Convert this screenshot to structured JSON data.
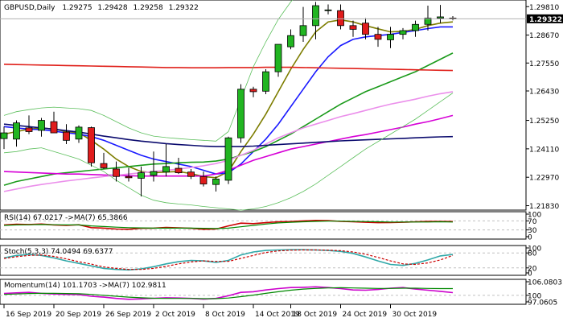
{
  "chart_data": {
    "type": "candlestick",
    "instrument": "GBPUSD,Daily",
    "ohlc_header": {
      "open": "1.29275",
      "high": "1.29428",
      "low": "1.29258",
      "close": "1.29322"
    },
    "current_price_label": "1.29322",
    "y_ticks": [
      "1.29810",
      "1.28670",
      "1.27550",
      "1.26430",
      "1.25250",
      "1.24110",
      "1.22970",
      "1.21830"
    ],
    "x_ticks": [
      "16 Sep 2019",
      "20 Sep 2019",
      "26 Sep 2019",
      "2 Oct 2019",
      "8 Oct 2019",
      "14 Oct 2019",
      "18 Oct 2019",
      "24 Oct 2019",
      "30 Oct 2019"
    ],
    "ylim": [
      1.2175,
      1.2998
    ],
    "candles": [
      {
        "o": 1.2452,
        "h": 1.25,
        "l": 1.241,
        "c": 1.2475
      },
      {
        "o": 1.245,
        "h": 1.2525,
        "l": 1.242,
        "c": 1.2515
      },
      {
        "o": 1.2495,
        "h": 1.2545,
        "l": 1.247,
        "c": 1.248
      },
      {
        "o": 1.2485,
        "h": 1.2535,
        "l": 1.246,
        "c": 1.2525
      },
      {
        "o": 1.252,
        "h": 1.256,
        "l": 1.248,
        "c": 1.2475
      },
      {
        "o": 1.2478,
        "h": 1.251,
        "l": 1.243,
        "c": 1.2445
      },
      {
        "o": 1.245,
        "h": 1.2505,
        "l": 1.2435,
        "c": 1.2498
      },
      {
        "o": 1.2496,
        "h": 1.25,
        "l": 1.234,
        "c": 1.2355
      },
      {
        "o": 1.2352,
        "h": 1.2395,
        "l": 1.233,
        "c": 1.2335
      },
      {
        "o": 1.233,
        "h": 1.236,
        "l": 1.228,
        "c": 1.23
      },
      {
        "o": 1.23,
        "h": 1.2335,
        "l": 1.228,
        "c": 1.2295
      },
      {
        "o": 1.2293,
        "h": 1.234,
        "l": 1.222,
        "c": 1.2315
      },
      {
        "o": 1.2305,
        "h": 1.24,
        "l": 1.228,
        "c": 1.232
      },
      {
        "o": 1.2318,
        "h": 1.243,
        "l": 1.23,
        "c": 1.234
      },
      {
        "o": 1.2333,
        "h": 1.2375,
        "l": 1.231,
        "c": 1.2315
      },
      {
        "o": 1.2318,
        "h": 1.233,
        "l": 1.229,
        "c": 1.23
      },
      {
        "o": 1.23,
        "h": 1.232,
        "l": 1.226,
        "c": 1.227
      },
      {
        "o": 1.2268,
        "h": 1.23,
        "l": 1.224,
        "c": 1.229
      },
      {
        "o": 1.2285,
        "h": 1.246,
        "l": 1.227,
        "c": 1.2455
      },
      {
        "o": 1.2455,
        "h": 1.267,
        "l": 1.2435,
        "c": 1.265
      },
      {
        "o": 1.265,
        "h": 1.266,
        "l": 1.2618,
        "c": 1.264
      },
      {
        "o": 1.2642,
        "h": 1.273,
        "l": 1.263,
        "c": 1.272
      },
      {
        "o": 1.272,
        "h": 1.283,
        "l": 1.27,
        "c": 1.283
      },
      {
        "o": 1.282,
        "h": 1.289,
        "l": 1.281,
        "c": 1.2865
      },
      {
        "o": 1.2865,
        "h": 1.298,
        "l": 1.284,
        "c": 1.2905
      },
      {
        "o": 1.2905,
        "h": 1.3,
        "l": 1.285,
        "c": 1.2985
      },
      {
        "o": 1.2965,
        "h": 1.299,
        "l": 1.295,
        "c": 1.2968
      },
      {
        "o": 1.2965,
        "h": 1.299,
        "l": 1.289,
        "c": 1.2905
      },
      {
        "o": 1.2905,
        "h": 1.2925,
        "l": 1.286,
        "c": 1.289
      },
      {
        "o": 1.2915,
        "h": 1.2935,
        "l": 1.285,
        "c": 1.287
      },
      {
        "o": 1.287,
        "h": 1.29,
        "l": 1.282,
        "c": 1.285
      },
      {
        "o": 1.2848,
        "h": 1.29,
        "l": 1.2815,
        "c": 1.287
      },
      {
        "o": 1.287,
        "h": 1.2895,
        "l": 1.285,
        "c": 1.2885
      },
      {
        "o": 1.2885,
        "h": 1.2925,
        "l": 1.286,
        "c": 1.291
      },
      {
        "o": 1.291,
        "h": 1.2985,
        "l": 1.2885,
        "c": 1.2935
      },
      {
        "o": 1.2935,
        "h": 1.2988,
        "l": 1.2915,
        "c": 1.294
      },
      {
        "o": 1.2935,
        "h": 1.2943,
        "l": 1.2926,
        "c": 1.2932
      }
    ],
    "overlays": [
      {
        "color": "#7d7d00",
        "values": [
          1.247,
          1.248,
          1.249,
          1.2495,
          1.249,
          1.248,
          1.2475,
          1.2445,
          1.241,
          1.237,
          1.234,
          1.232,
          1.2315,
          1.2318,
          1.232,
          1.2312,
          1.23,
          1.2295,
          1.232,
          1.24,
          1.247,
          1.255,
          1.264,
          1.273,
          1.281,
          1.288,
          1.292,
          1.2928,
          1.292,
          1.2905,
          1.2892,
          1.288,
          1.2882,
          1.289,
          1.2905,
          1.2915,
          1.292
        ]
      },
      {
        "color": "#1a1aff",
        "values": [
          1.25,
          1.2495,
          1.249,
          1.2488,
          1.2482,
          1.2475,
          1.247,
          1.246,
          1.2445,
          1.2425,
          1.2405,
          1.2385,
          1.237,
          1.236,
          1.235,
          1.234,
          1.2325,
          1.231,
          1.2315,
          1.235,
          1.24,
          1.245,
          1.251,
          1.258,
          1.265,
          1.272,
          1.278,
          1.2825,
          1.285,
          1.286,
          1.2865,
          1.287,
          1.2878,
          1.2885,
          1.2893,
          1.29,
          1.29
        ]
      },
      {
        "color": "#1a9a1a",
        "values": [
          1.2265,
          1.228,
          1.229,
          1.23,
          1.231,
          1.2315,
          1.232,
          1.2325,
          1.233,
          1.2335,
          1.234,
          1.2345,
          1.235,
          1.2352,
          1.2355,
          1.2357,
          1.2358,
          1.2362,
          1.237,
          1.2385,
          1.24,
          1.242,
          1.2445,
          1.247,
          1.25,
          1.253,
          1.256,
          1.259,
          1.2615,
          1.264,
          1.266,
          1.268,
          1.27,
          1.272,
          1.2745,
          1.277,
          1.2795
        ]
      },
      {
        "color": "#d600d6",
        "values": [
          1.232,
          1.2318,
          1.2316,
          1.2314,
          1.2312,
          1.231,
          1.231,
          1.2308,
          1.2306,
          1.2305,
          1.2303,
          1.2302,
          1.2302,
          1.2302,
          1.2302,
          1.2302,
          1.2302,
          1.231,
          1.2325,
          1.2345,
          1.2365,
          1.238,
          1.2395,
          1.241,
          1.242,
          1.243,
          1.244,
          1.245,
          1.246,
          1.2468,
          1.2478,
          1.2488,
          1.2498,
          1.251,
          1.252,
          1.2532,
          1.2545
        ]
      },
      {
        "color": "#eb8feb",
        "values": [
          1.224,
          1.225,
          1.226,
          1.2268,
          1.2275,
          1.2282,
          1.2288,
          1.2294,
          1.23,
          1.2305,
          1.231,
          1.2315,
          1.232,
          1.2325,
          1.233,
          1.2336,
          1.2343,
          1.2352,
          1.2365,
          1.2385,
          1.2405,
          1.243,
          1.2455,
          1.2475,
          1.2495,
          1.251,
          1.2525,
          1.254,
          1.2552,
          1.2565,
          1.2578,
          1.259,
          1.26,
          1.261,
          1.2622,
          1.2632,
          1.264
        ]
      },
      {
        "color": "#0b0b6e",
        "values": [
          1.251,
          1.2505,
          1.25,
          1.2495,
          1.249,
          1.2484,
          1.2478,
          1.247,
          1.2462,
          1.2455,
          1.2448,
          1.2442,
          1.2437,
          1.2432,
          1.2428,
          1.2425,
          1.2422,
          1.242,
          1.242,
          1.242,
          1.2422,
          1.2425,
          1.2428,
          1.2431,
          1.2434,
          1.2437,
          1.244,
          1.2443,
          1.2445,
          1.2447,
          1.2449,
          1.2451,
          1.2453,
          1.2455,
          1.2457,
          1.2459,
          1.246
        ]
      },
      {
        "color": "#e0201a",
        "values": [
          1.275,
          1.2749,
          1.2748,
          1.2747,
          1.2746,
          1.2745,
          1.2744,
          1.2743,
          1.2742,
          1.2741,
          1.274,
          1.2739,
          1.2738,
          1.2737,
          1.2737,
          1.2736,
          1.2736,
          1.2736,
          1.2737,
          1.2737,
          1.2737,
          1.2738,
          1.2738,
          1.2738,
          1.2737,
          1.2736,
          1.2735,
          1.2734,
          1.2733,
          1.2732,
          1.2731,
          1.273,
          1.2729,
          1.2728,
          1.2727,
          1.2726,
          1.2725
        ]
      },
      {
        "color": "#5cbf5c",
        "width": 0.8,
        "values": [
          1.2545,
          1.256,
          1.2568,
          1.2575,
          1.2578,
          1.2575,
          1.2572,
          1.2565,
          1.2545,
          1.252,
          1.2495,
          1.2475,
          1.2462,
          1.2456,
          1.2452,
          1.2448,
          1.2445,
          1.2442,
          1.248,
          1.261,
          1.274,
          1.284,
          1.293,
          1.3,
          1.306,
          1.31,
          1.312,
          1.312,
          1.311,
          1.3095,
          1.308,
          1.307,
          1.306,
          1.3055,
          1.3052,
          1.3052,
          1.3055
        ]
      },
      {
        "color": "#5cbf5c",
        "width": 0.8,
        "values": [
          1.2395,
          1.24,
          1.241,
          1.2415,
          1.24,
          1.2385,
          1.237,
          1.2345,
          1.232,
          1.2285,
          1.2255,
          1.2225,
          1.2205,
          1.2195,
          1.219,
          1.2186,
          1.218,
          1.2175,
          1.217,
          1.2165,
          1.217,
          1.218,
          1.2195,
          1.2215,
          1.224,
          1.227,
          1.2305,
          1.234,
          1.2375,
          1.241,
          1.244,
          1.247,
          1.25,
          1.253,
          1.2565,
          1.26,
          1.2635
        ]
      }
    ],
    "indicators": [
      {
        "label": "RSI(14) 67.0217  ->MA(7) 65.3866",
        "ticks": [
          "100",
          "70",
          "30",
          "0"
        ],
        "series": [
          {
            "color": "#cc0000",
            "values": [
              52,
              55,
              54,
              56,
              52,
              50,
              53,
              40,
              38,
              34,
              33,
              37,
              38,
              41,
              39,
              37,
              33,
              34,
              48,
              60,
              58,
              62,
              66,
              67,
              70,
              72,
              71,
              68,
              66,
              64,
              62,
              63,
              64,
              66,
              68,
              68,
              67
            ]
          },
          {
            "color": "#008800",
            "values": [
              50,
              52,
              53,
              54,
              53,
              52,
              52,
              48,
              45,
              42,
              40,
              39,
              38,
              38,
              38,
              38,
              37,
              36,
              38,
              44,
              50,
              56,
              61,
              64,
              66,
              68,
              69,
              69,
              68,
              67,
              66,
              65,
              65,
              65,
              65,
              66,
              65
            ]
          }
        ]
      },
      {
        "label": "Stoch(5,3,3) 74.0494 69.6377",
        "ticks": [
          "100",
          "80",
          "20",
          "0"
        ],
        "series": [
          {
            "color": "#2fa8a8",
            "values": [
              60,
              70,
              74,
              70,
              60,
              48,
              38,
              28,
              18,
              14,
              12,
              16,
              25,
              36,
              45,
              50,
              48,
              42,
              50,
              72,
              84,
              90,
              92,
              93,
              93,
              92,
              90,
              86,
              78,
              64,
              48,
              34,
              30,
              38,
              52,
              68,
              74
            ]
          },
          {
            "color": "#cc0000",
            "dashed": true,
            "values": [
              58,
              65,
              70,
              72,
              66,
              56,
              45,
              35,
              24,
              18,
              14,
              14,
              18,
              26,
              36,
              44,
              48,
              46,
              46,
              58,
              70,
              82,
              88,
              91,
              92,
              92,
              91,
              89,
              84,
              75,
              62,
              48,
              36,
              34,
              40,
              52,
              70
            ]
          }
        ]
      },
      {
        "label": "Momentum(14) 101.1703  ->MA(7) 102.9811",
        "ticks": [
          "106.0803",
          "100",
          "97.0605"
        ],
        "series": [
          {
            "color": "#cc00cc",
            "values": [
              100.8,
              101.1,
              101.3,
              100.9,
              100.6,
              100.4,
              100.3,
              99.6,
              99.2,
              98.6,
              98.2,
              98.4,
              98.7,
              98.9,
              98.8,
              98.6,
              98.3,
              98.6,
              99.8,
              101.3,
              101.6,
              102.4,
              103.0,
              103.5,
              103.6,
              103.8,
              103.5,
              103.0,
              102.4,
              102.3,
              102.6,
              103.2,
              103.5,
              102.8,
              102.3,
              101.8,
              101.2
            ]
          },
          {
            "color": "#008800",
            "values": [
              100.4,
              100.6,
              100.8,
              100.9,
              100.9,
              100.8,
              100.7,
              100.4,
              100.0,
              99.6,
              99.2,
              98.9,
              98.7,
              98.6,
              98.6,
              98.6,
              98.5,
              98.5,
              98.8,
              99.4,
              100.1,
              100.9,
              101.6,
              102.3,
              102.8,
              103.1,
              103.3,
              103.4,
              103.3,
              103.2,
              103.1,
              103.1,
              103.2,
              103.2,
              103.1,
              103.0,
              103.0
            ]
          }
        ]
      }
    ]
  }
}
